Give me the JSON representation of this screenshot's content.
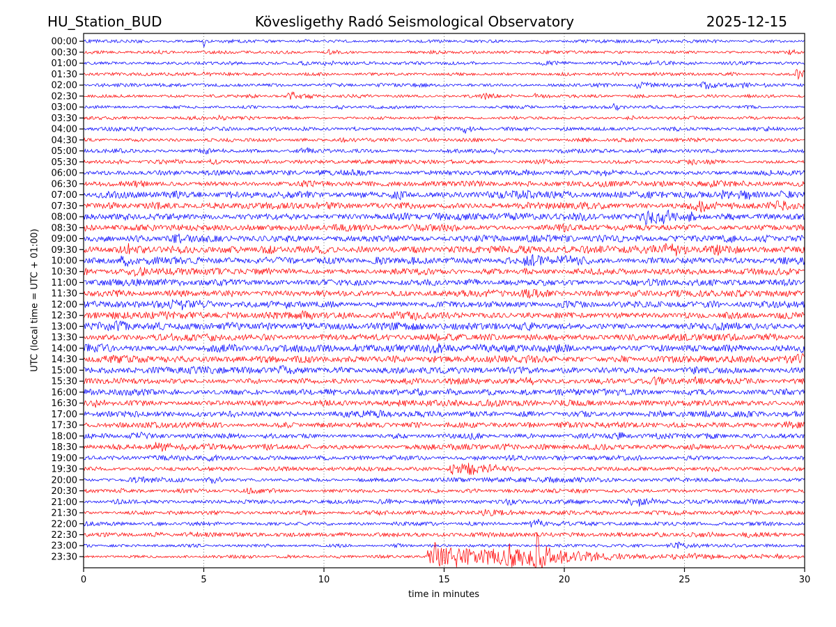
{
  "chart_data": {
    "type": "line",
    "subtype": "helicorder-day-plot",
    "title_left": "HU_Station_BUD",
    "title_center": "Kövesligethy Radó Seismological Observatory",
    "title_right": "2025-12-15",
    "xlabel": "time in minutes",
    "ylabel": "UTC (local time = UTC + 01:00)",
    "x_ticks": [
      0,
      5,
      10,
      15,
      20,
      25,
      30
    ],
    "x_range": [
      0,
      30
    ],
    "grid_minutes": [
      5,
      10,
      15,
      20,
      25
    ],
    "row_interval_minutes": 30,
    "grid_on": true,
    "legend_position": "none",
    "colors": {
      "blue": "#0000ff",
      "red": "#ff0000",
      "grid": "#666666",
      "axis": "#000000"
    },
    "rows": [
      {
        "time": "00:00",
        "color": "blue",
        "noise": 2.2,
        "events": [
          {
            "t": 4.95,
            "rise": 0.05,
            "sustain": 0.05,
            "decay": 0.15,
            "amp": 9
          }
        ]
      },
      {
        "time": "00:30",
        "color": "red",
        "noise": 2.2,
        "events": [
          {
            "t": 10.1,
            "rise": 0.1,
            "sustain": 0,
            "decay": 0.3,
            "amp": 3
          },
          {
            "t": 29.2,
            "rise": 0.2,
            "sustain": 0,
            "decay": 0.6,
            "amp": 4
          }
        ]
      },
      {
        "time": "01:00",
        "color": "blue",
        "noise": 2.2,
        "events": [
          {
            "t": 9.9,
            "rise": 0.2,
            "sustain": 0,
            "decay": 0.4,
            "amp": 3
          },
          {
            "t": 23.3,
            "rise": 0.2,
            "sustain": 0,
            "decay": 0.5,
            "amp": 4
          }
        ]
      },
      {
        "time": "01:30",
        "color": "red",
        "noise": 2.2,
        "events": [
          {
            "t": 4.7,
            "rise": 0.2,
            "sustain": 0,
            "decay": 0.4,
            "amp": 3
          },
          {
            "t": 29.5,
            "rise": 0.15,
            "sustain": 0.2,
            "decay": 0.5,
            "amp": 6
          }
        ]
      },
      {
        "time": "02:00",
        "color": "blue",
        "noise": 2.3,
        "events": [
          {
            "t": 22.8,
            "rise": 0.3,
            "sustain": 0.2,
            "decay": 0.8,
            "amp": 5
          },
          {
            "t": 25.6,
            "rise": 0.3,
            "sustain": 0.2,
            "decay": 0.8,
            "amp": 6
          },
          {
            "t": 27.3,
            "rise": 0.2,
            "sustain": 0,
            "decay": 0.5,
            "amp": 4
          }
        ]
      },
      {
        "time": "02:30",
        "color": "red",
        "noise": 2.3,
        "events": [
          {
            "t": 8.3,
            "rise": 0.3,
            "sustain": 0.2,
            "decay": 0.8,
            "amp": 5
          },
          {
            "t": 16.2,
            "rise": 0.3,
            "sustain": 0.2,
            "decay": 0.9,
            "amp": 5
          },
          {
            "t": 18.6,
            "rise": 0.2,
            "sustain": 0,
            "decay": 0.5,
            "amp": 3
          }
        ]
      },
      {
        "time": "03:00",
        "color": "blue",
        "noise": 2.3,
        "events": [
          {
            "t": 10.4,
            "rise": 0.2,
            "sustain": 0,
            "decay": 0.5,
            "amp": 3
          },
          {
            "t": 21.8,
            "rise": 0.3,
            "sustain": 0,
            "decay": 0.6,
            "amp": 3.5
          }
        ]
      },
      {
        "time": "03:30",
        "color": "red",
        "noise": 2.4,
        "events": [
          {
            "t": 5.4,
            "rise": 0.2,
            "sustain": 0,
            "decay": 0.6,
            "amp": 4
          },
          {
            "t": 22.4,
            "rise": 0.3,
            "sustain": 0,
            "decay": 0.6,
            "amp": 3
          }
        ]
      },
      {
        "time": "04:00",
        "color": "blue",
        "noise": 2.6,
        "events": [
          {
            "t": 11.0,
            "rise": 0.2,
            "sustain": 0,
            "decay": 0.4,
            "amp": 3
          },
          {
            "t": 15.6,
            "rise": 0.2,
            "sustain": 0.1,
            "decay": 0.6,
            "amp": 5
          }
        ]
      },
      {
        "time": "04:30",
        "color": "red",
        "noise": 2.7,
        "events": [
          {
            "t": 16.5,
            "rise": 0.3,
            "sustain": 0,
            "decay": 0.5,
            "amp": 3
          }
        ]
      },
      {
        "time": "05:00",
        "color": "blue",
        "noise": 2.8,
        "events": [
          {
            "t": 4.8,
            "rise": 0.2,
            "sustain": 0.1,
            "decay": 0.5,
            "amp": 5
          },
          {
            "t": 16.8,
            "rise": 0.3,
            "sustain": 0,
            "decay": 0.5,
            "amp": 3
          }
        ]
      },
      {
        "time": "05:30",
        "color": "red",
        "noise": 3.0,
        "events": [
          {
            "t": 24.8,
            "rise": 0.3,
            "sustain": 0,
            "decay": 0.6,
            "amp": 3
          }
        ]
      },
      {
        "time": "06:00",
        "color": "blue",
        "noise": 3.4,
        "events": [
          {
            "t": 21.4,
            "rise": 0.2,
            "sustain": 0.1,
            "decay": 0.6,
            "amp": 5
          }
        ]
      },
      {
        "time": "06:30",
        "color": "red",
        "noise": 4.2,
        "events": []
      },
      {
        "time": "07:00",
        "color": "blue",
        "noise": 4.8,
        "events": [
          {
            "t": 26.3,
            "rise": 0.4,
            "sustain": 0.3,
            "decay": 1.0,
            "amp": 5
          }
        ]
      },
      {
        "time": "07:30",
        "color": "red",
        "noise": 4.8,
        "events": [
          {
            "t": 25.3,
            "rise": 0.3,
            "sustain": 0.2,
            "decay": 0.8,
            "amp": 6
          },
          {
            "t": 28.4,
            "rise": 0.3,
            "sustain": 0,
            "decay": 0.8,
            "amp": 5
          }
        ]
      },
      {
        "time": "08:00",
        "color": "blue",
        "noise": 4.8,
        "events": [
          {
            "t": 22.9,
            "rise": 0.5,
            "sustain": 0.8,
            "decay": 1.2,
            "amp": 9
          }
        ]
      },
      {
        "time": "08:30",
        "color": "red",
        "noise": 4.8,
        "events": []
      },
      {
        "time": "09:00",
        "color": "blue",
        "noise": 4.9,
        "events": []
      },
      {
        "time": "09:30",
        "color": "red",
        "noise": 5.2,
        "events": [
          {
            "t": 1.5,
            "rise": 0.2,
            "sustain": 0.1,
            "decay": 0.7,
            "amp": 7
          },
          {
            "t": 24.0,
            "rise": 0.25,
            "sustain": 0.3,
            "decay": 0.5,
            "amp": 9
          },
          {
            "t": 25.9,
            "rise": 0.3,
            "sustain": 0,
            "decay": 0.8,
            "amp": 5
          }
        ]
      },
      {
        "time": "10:00",
        "color": "blue",
        "noise": 4.9,
        "events": [
          {
            "t": 1.3,
            "rise": 0.3,
            "sustain": 0.2,
            "decay": 0.8,
            "amp": 7
          },
          {
            "t": 18.2,
            "rise": 0.4,
            "sustain": 0.3,
            "decay": 1.0,
            "amp": 7
          }
        ]
      },
      {
        "time": "10:30",
        "color": "red",
        "noise": 4.7,
        "events": []
      },
      {
        "time": "11:00",
        "color": "blue",
        "noise": 4.6,
        "events": []
      },
      {
        "time": "11:30",
        "color": "red",
        "noise": 4.6,
        "events": []
      },
      {
        "time": "12:00",
        "color": "blue",
        "noise": 4.8,
        "events": [
          {
            "t": 3.2,
            "rise": 0.5,
            "sustain": 0.6,
            "decay": 1.2,
            "amp": 6
          }
        ]
      },
      {
        "time": "12:30",
        "color": "red",
        "noise": 4.9,
        "events": []
      },
      {
        "time": "13:00",
        "color": "blue",
        "noise": 5.6,
        "events": []
      },
      {
        "time": "13:30",
        "color": "red",
        "noise": 5.0,
        "events": []
      },
      {
        "time": "14:00",
        "color": "blue",
        "noise": 5.7,
        "events": [
          {
            "t": 29.6,
            "rise": 0.3,
            "sustain": 0.4,
            "decay": 0.8,
            "amp": 6
          }
        ]
      },
      {
        "time": "14:30",
        "color": "red",
        "noise": 5.2,
        "events": [
          {
            "t": 29.6,
            "rise": 0.3,
            "sustain": 0.4,
            "decay": 0.8,
            "amp": 6
          }
        ]
      },
      {
        "time": "15:00",
        "color": "blue",
        "noise": 4.9,
        "events": [
          {
            "t": 7.7,
            "rise": 0.3,
            "sustain": 0.1,
            "decay": 0.8,
            "amp": 5
          }
        ]
      },
      {
        "time": "15:30",
        "color": "red",
        "noise": 4.2,
        "events": []
      },
      {
        "time": "16:00",
        "color": "blue",
        "noise": 4.4,
        "events": [
          {
            "t": 9.8,
            "rise": 0.3,
            "sustain": 0,
            "decay": 0.7,
            "amp": 4
          }
        ]
      },
      {
        "time": "16:30",
        "color": "red",
        "noise": 4.4,
        "events": [
          {
            "t": 0.3,
            "rise": 0.2,
            "sustain": 0.1,
            "decay": 0.6,
            "amp": 5
          }
        ]
      },
      {
        "time": "17:00",
        "color": "blue",
        "noise": 4.6,
        "events": []
      },
      {
        "time": "17:30",
        "color": "red",
        "noise": 3.9,
        "events": []
      },
      {
        "time": "18:00",
        "color": "blue",
        "noise": 3.7,
        "events": []
      },
      {
        "time": "18:30",
        "color": "red",
        "noise": 3.7,
        "events": [
          {
            "t": 2.8,
            "rise": 0.3,
            "sustain": 0.3,
            "decay": 0.9,
            "amp": 6
          }
        ]
      },
      {
        "time": "19:00",
        "color": "blue",
        "noise": 3.3,
        "events": []
      },
      {
        "time": "19:30",
        "color": "red",
        "noise": 2.9,
        "events": [
          {
            "t": 15.1,
            "rise": 0.25,
            "sustain": 0.5,
            "decay": 1.3,
            "amp": 9
          }
        ]
      },
      {
        "time": "20:00",
        "color": "blue",
        "noise": 3.1,
        "events": [
          {
            "t": 5.1,
            "rise": 0.2,
            "sustain": 0,
            "decay": 0.5,
            "amp": 4
          }
        ]
      },
      {
        "time": "20:30",
        "color": "red",
        "noise": 2.8,
        "events": []
      },
      {
        "time": "21:00",
        "color": "blue",
        "noise": 3.2,
        "events": [
          {
            "t": 12.2,
            "rise": 0.3,
            "sustain": 0,
            "decay": 0.6,
            "amp": 4
          },
          {
            "t": 22.5,
            "rise": 0.3,
            "sustain": 0.2,
            "decay": 0.8,
            "amp": 5
          }
        ]
      },
      {
        "time": "21:30",
        "color": "red",
        "noise": 3.0,
        "events": [
          {
            "t": 16.3,
            "rise": 0.4,
            "sustain": 0.3,
            "decay": 1.0,
            "amp": 5
          }
        ]
      },
      {
        "time": "22:00",
        "color": "blue",
        "noise": 2.8,
        "events": [
          {
            "t": 18.4,
            "rise": 0.4,
            "sustain": 0.2,
            "decay": 0.9,
            "amp": 7
          }
        ]
      },
      {
        "time": "22:30",
        "color": "red",
        "noise": 3.1,
        "events": []
      },
      {
        "time": "23:00",
        "color": "blue",
        "noise": 2.3,
        "events": [
          {
            "t": 24.2,
            "rise": 0.3,
            "sustain": 0.2,
            "decay": 0.9,
            "amp": 4
          }
        ]
      },
      {
        "time": "23:30",
        "color": "red",
        "noise": 2.3,
        "events": [
          {
            "t": 14.2,
            "rise": 0.15,
            "sustain": 4.4,
            "decay": 1.8,
            "amp": 12
          },
          {
            "t": 14.55,
            "rise": 0.02,
            "sustain": 0.05,
            "decay": 0.08,
            "amp": 16
          },
          {
            "t": 15.35,
            "rise": 0.02,
            "sustain": 0.05,
            "decay": 0.1,
            "amp": 18
          },
          {
            "t": 17.6,
            "rise": 0.02,
            "sustain": 0.04,
            "decay": 0.1,
            "amp": 15
          },
          {
            "t": 18.75,
            "rise": 0.03,
            "sustain": 0.1,
            "decay": 0.25,
            "amp": 30
          },
          {
            "t": 19.5,
            "rise": 0.5,
            "sustain": 10.5,
            "decay": 3.0,
            "amp": 2.5
          }
        ]
      }
    ]
  }
}
